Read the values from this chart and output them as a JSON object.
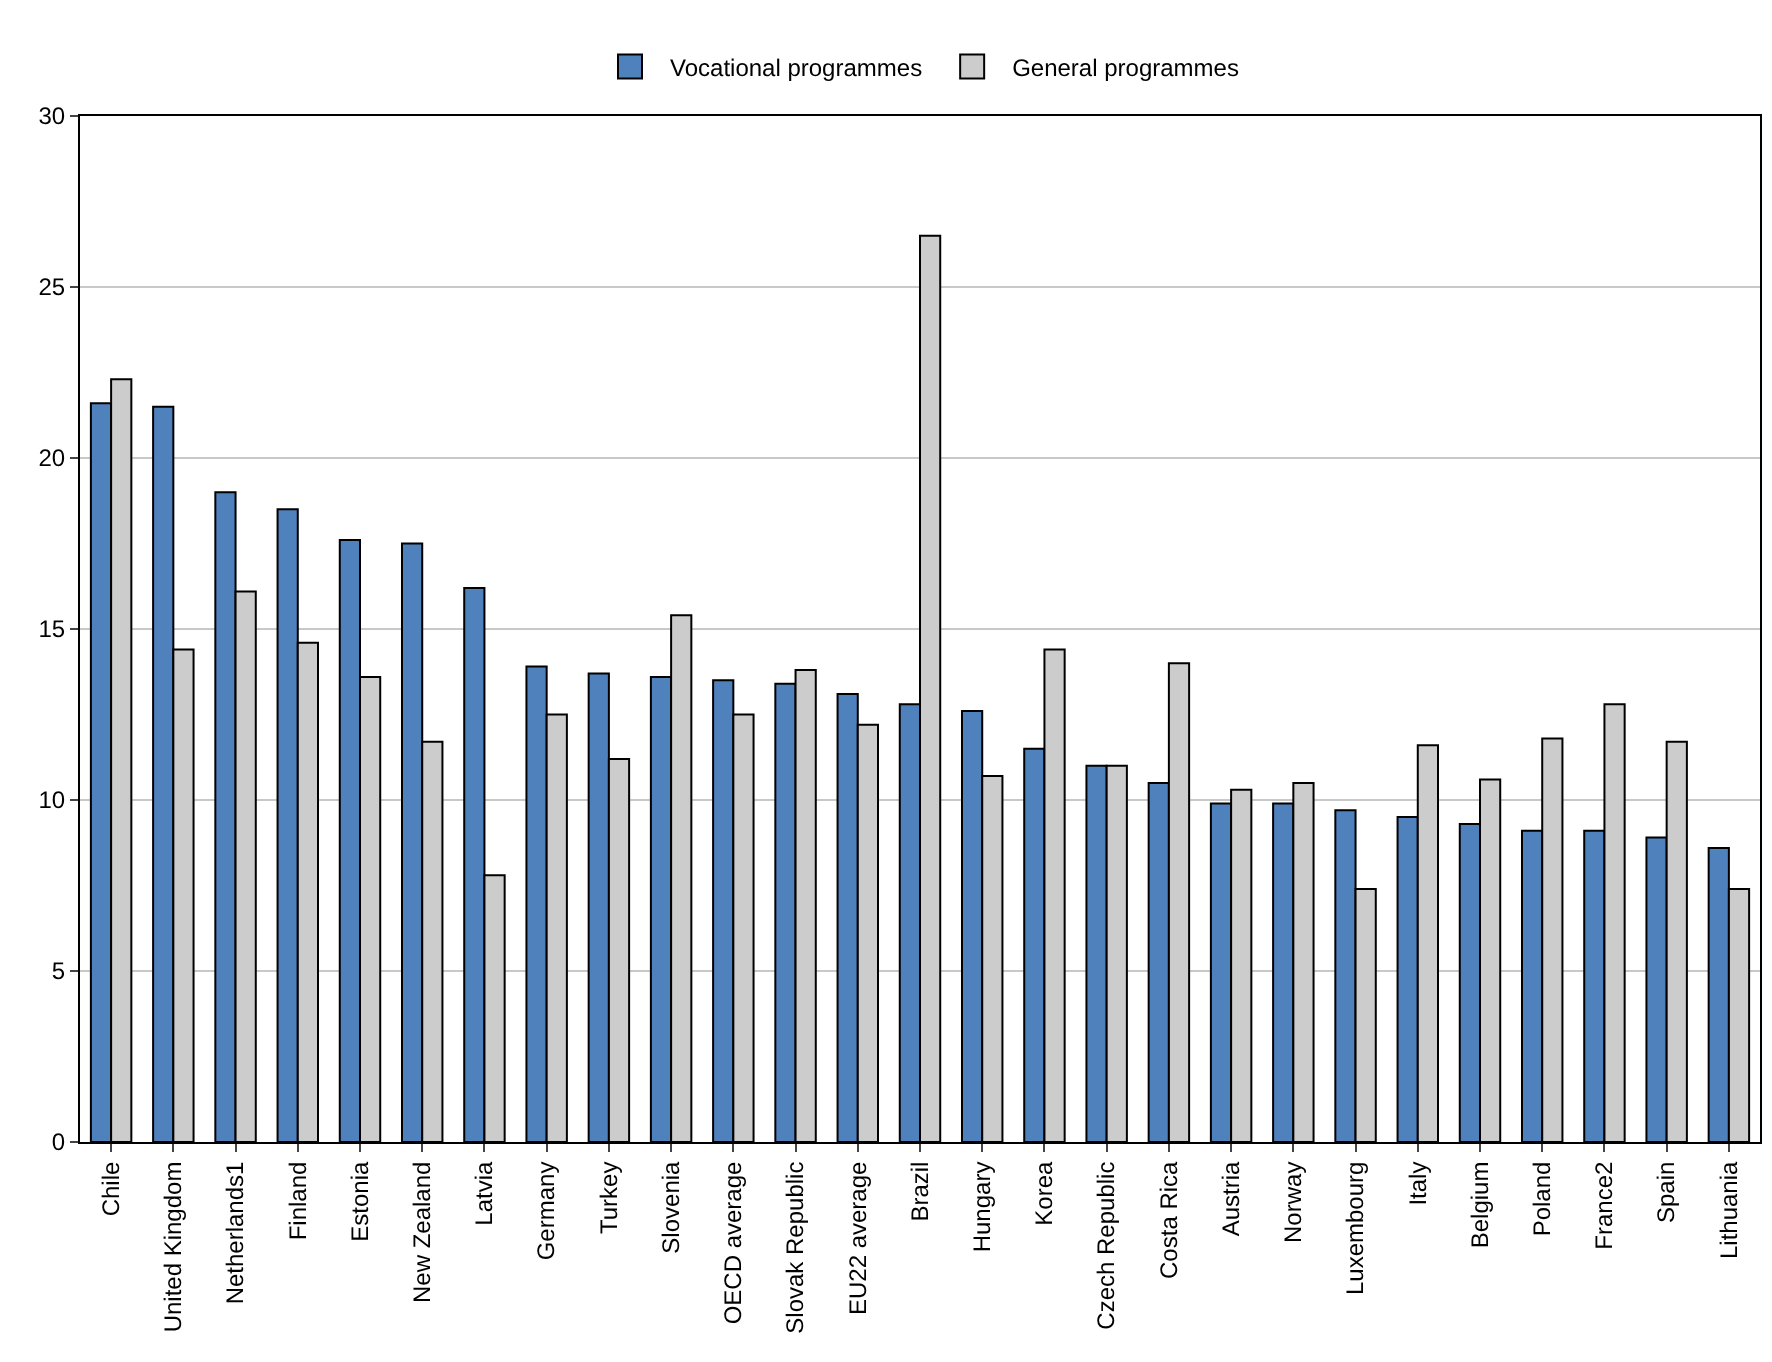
{
  "chart_data": {
    "type": "bar",
    "categories": [
      "Chile",
      "United Kingdom",
      "Netherlands1",
      "Finland",
      "Estonia",
      "New Zealand",
      "Latvia",
      "Germany",
      "Turkey",
      "Slovenia",
      "OECD average",
      "Slovak Republic",
      "EU22 average",
      "Brazil",
      "Hungary",
      "Korea",
      "Czech Republic",
      "Costa Rica",
      "Austria",
      "Norway",
      "Luxembourg",
      "Italy",
      "Belgium",
      "Poland",
      "France2",
      "Spain",
      "Lithuania"
    ],
    "series": [
      {
        "name": "Vocational programmes",
        "color": "#4f81bd",
        "values": [
          21.6,
          21.5,
          19.0,
          18.5,
          17.6,
          17.5,
          16.2,
          13.9,
          13.7,
          13.6,
          13.5,
          13.4,
          13.1,
          12.8,
          12.6,
          11.5,
          11.0,
          10.5,
          9.9,
          9.9,
          9.7,
          9.5,
          9.3,
          9.1,
          9.1,
          8.9,
          8.6
        ]
      },
      {
        "name": "General programmes",
        "color": "#cccccc",
        "values": [
          22.3,
          14.4,
          16.1,
          14.6,
          13.6,
          11.7,
          7.8,
          12.5,
          11.2,
          15.4,
          12.5,
          13.8,
          12.2,
          26.5,
          10.7,
          14.4,
          11.0,
          14.0,
          10.3,
          10.5,
          7.4,
          11.6,
          10.6,
          11.8,
          12.8,
          11.7,
          7.4
        ]
      }
    ],
    "ylim": [
      0,
      30
    ],
    "yticks": [
      0,
      5,
      10,
      15,
      20,
      25,
      30
    ],
    "grid": "y",
    "legend": "top"
  }
}
